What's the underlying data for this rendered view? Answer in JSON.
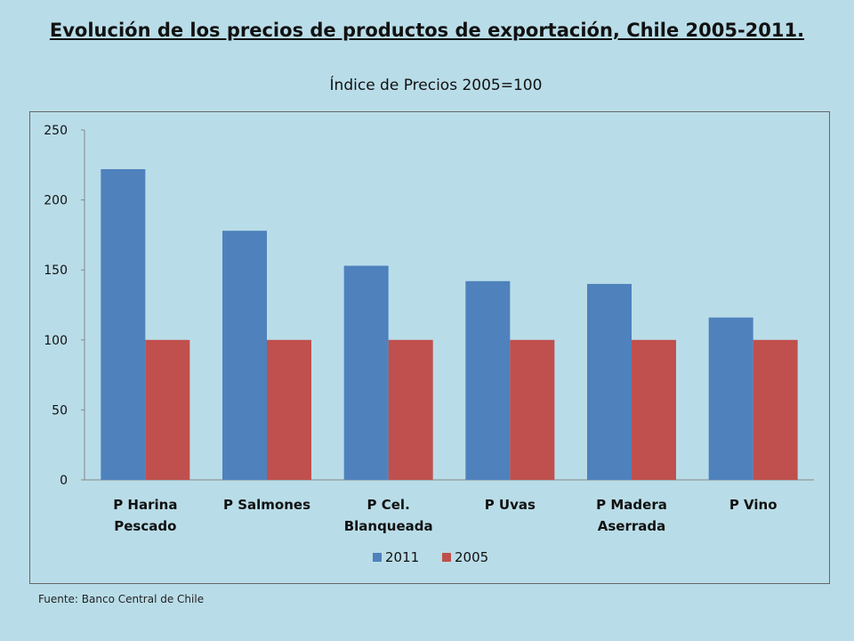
{
  "title": "Evolución de los precios de productos de exportación, Chile 2005-2011.",
  "subtitle": "Índice de Precios 2005=100",
  "source": "Fuente: Banco Central de Chile",
  "colors": {
    "background": "#b9dde8",
    "series_2011": "#4f81bd",
    "series_2005": "#c0504d",
    "axis": "#888888",
    "text": "#111111"
  },
  "chart_data": {
    "type": "bar",
    "categories": [
      [
        "P Harina",
        "Pescado"
      ],
      [
        "P Salmones"
      ],
      [
        "P Cel.",
        "Blanqueada"
      ],
      [
        "P Uvas"
      ],
      [
        "P Madera",
        "Aserrada"
      ],
      [
        "P Vino"
      ]
    ],
    "series": [
      {
        "name": "2011",
        "values": [
          222,
          178,
          153,
          142,
          140,
          116
        ]
      },
      {
        "name": "2005",
        "values": [
          100,
          100,
          100,
          100,
          100,
          100
        ]
      }
    ],
    "ylim": [
      0,
      250
    ],
    "yticks": [
      0,
      50,
      100,
      150,
      200,
      250
    ],
    "grid": false,
    "legend": "bottom-center",
    "xlabel": "",
    "ylabel": ""
  }
}
